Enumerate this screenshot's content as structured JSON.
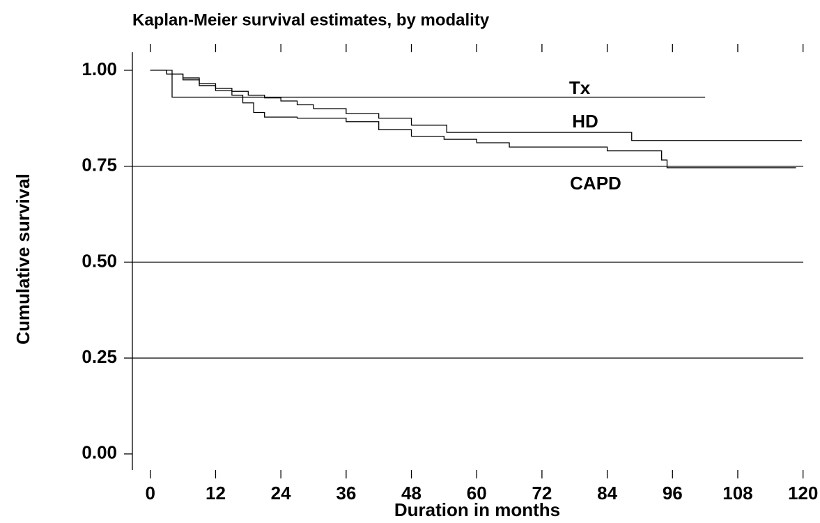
{
  "chart_data": {
    "type": "step",
    "title": "Kaplan-Meier survival estimates, by modality",
    "xlabel": "Duration in months",
    "ylabel": "Cumulative survival",
    "xlim": [
      -3.3,
      120.3
    ],
    "ylim": [
      -0.042,
      1.047
    ],
    "xticks": [
      0,
      12,
      24,
      36,
      48,
      60,
      72,
      84,
      96,
      108,
      120
    ],
    "yticks": [
      {
        "value": 0,
        "label": "0.00"
      },
      {
        "value": 0.25,
        "label": "0.25"
      },
      {
        "value": 0.5,
        "label": "0.50"
      },
      {
        "value": 0.75,
        "label": "0.75"
      },
      {
        "value": 1,
        "label": "1.00"
      }
    ],
    "hlines": [
      0.25,
      0.5,
      0.75
    ],
    "series": [
      {
        "name": "Tx",
        "color": "#000000",
        "x": [
          0,
          4,
          102
        ],
        "values": [
          1.0,
          0.93,
          0.93
        ]
      },
      {
        "name": "HD",
        "color": "#000000",
        "x": [
          0,
          3,
          6,
          9,
          12,
          15,
          18,
          21,
          24,
          27,
          30,
          36,
          42,
          48,
          54.5,
          88.5,
          119.8
        ],
        "values": [
          1.0,
          0.99,
          0.98,
          0.965,
          0.953,
          0.945,
          0.935,
          0.928,
          0.92,
          0.91,
          0.9,
          0.887,
          0.875,
          0.857,
          0.838,
          0.817,
          0.817
        ]
      },
      {
        "name": "CAPD",
        "color": "#000000",
        "x": [
          0,
          3,
          6,
          9,
          12,
          15,
          17,
          19,
          21,
          27,
          36,
          42,
          48,
          54,
          60,
          66,
          84,
          94,
          95,
          118.7
        ],
        "values": [
          1.0,
          0.99,
          0.975,
          0.96,
          0.947,
          0.935,
          0.915,
          0.89,
          0.878,
          0.875,
          0.866,
          0.845,
          0.828,
          0.82,
          0.811,
          0.8,
          0.79,
          0.766,
          0.746,
          0.746
        ]
      }
    ]
  }
}
